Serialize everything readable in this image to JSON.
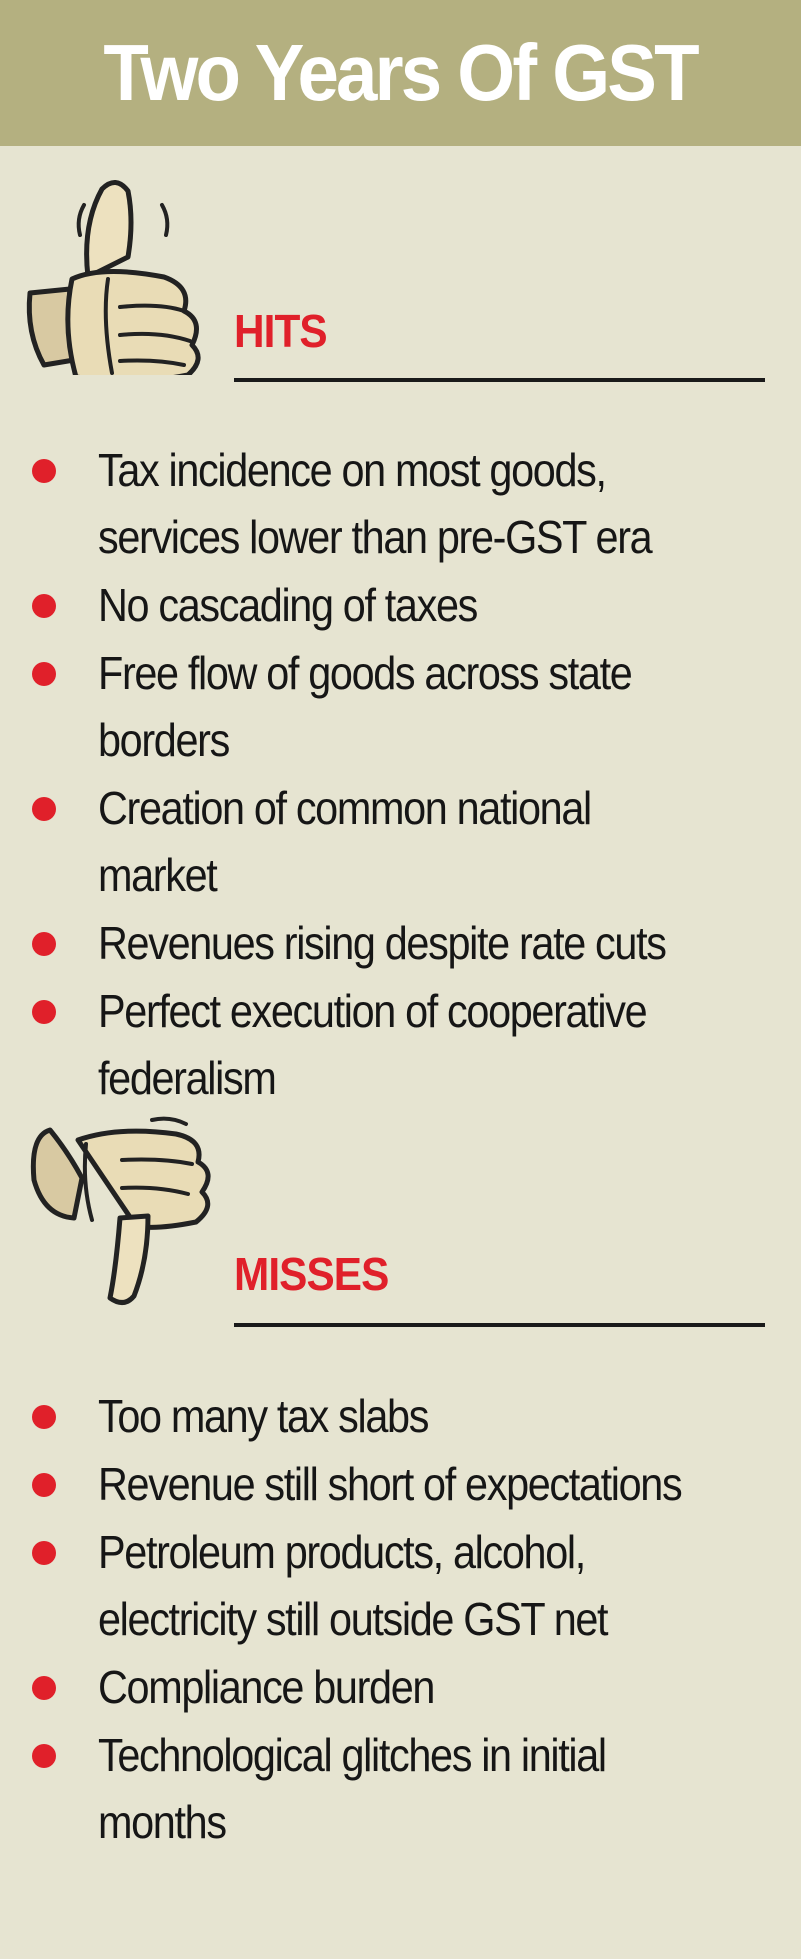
{
  "title": "Two Years Of GST",
  "hits": {
    "heading": "HITS",
    "icon": "thumbs-up-icon",
    "items": [
      "Tax incidence on most goods, services lower than pre-GST era",
      "No cascading of taxes",
      "Free flow of goods across state borders",
      "Creation of common national market",
      "Revenues rising despite rate cuts",
      "Perfect execution of cooperative federalism"
    ]
  },
  "misses": {
    "heading": "MISSES",
    "icon": "thumbs-down-icon",
    "items": [
      "Too many tax slabs",
      "Revenue still short of expectations",
      "Petroleum products, alcohol, electricity still outside GST net",
      "Compliance burden",
      "Technological glitches in initial months"
    ]
  },
  "colors": {
    "header_bg": "#b4b080",
    "page_bg": "#e6e4d1",
    "accent_red": "#e0202a",
    "text": "#161616"
  }
}
